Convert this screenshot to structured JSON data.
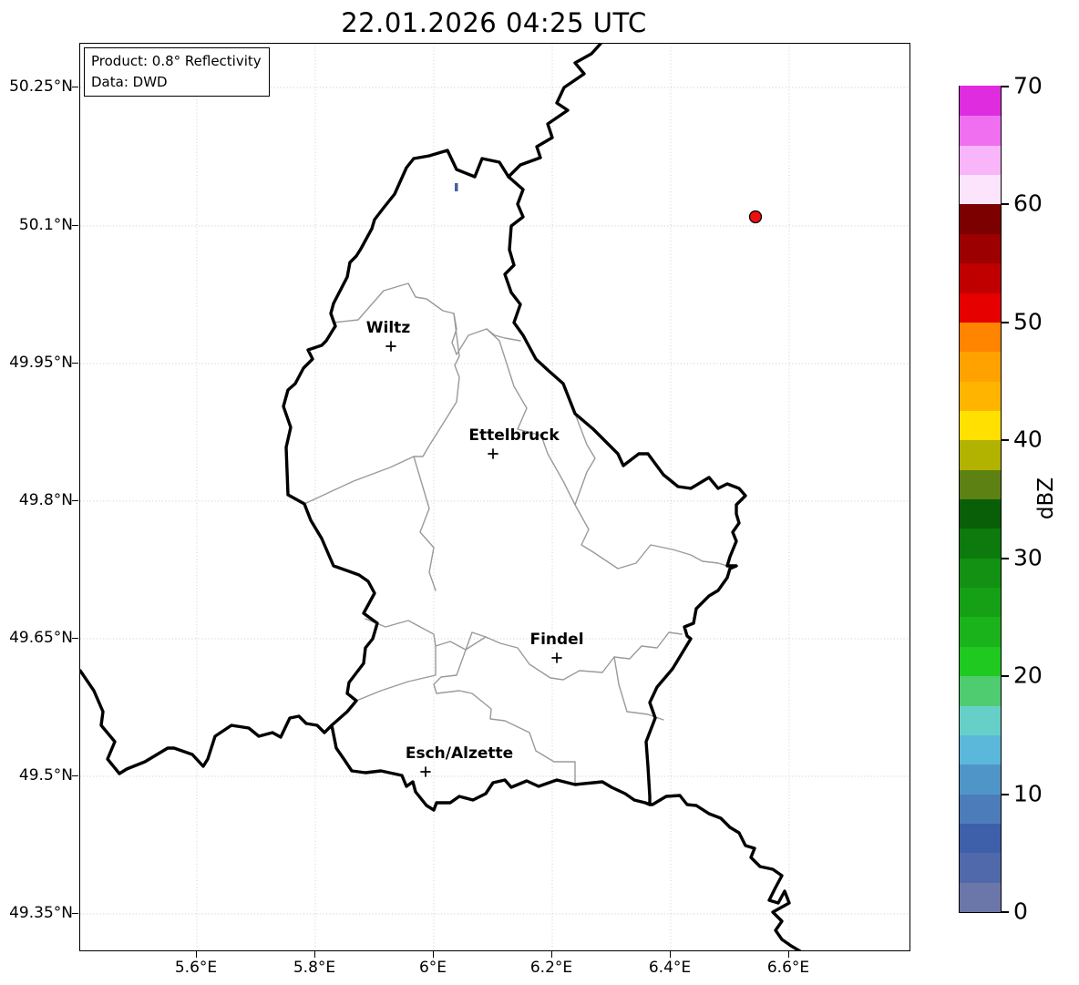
{
  "title": "22.01.2026 04:25 UTC",
  "info_box": {
    "line1": "Product: 0.8° Reflectivity",
    "line2": "Data: DWD"
  },
  "cities": [
    {
      "name": "Wiltz"
    },
    {
      "name": "Ettelbruck"
    },
    {
      "name": "Findel"
    },
    {
      "name": "Esch/Alzette"
    }
  ],
  "axes": {
    "x_ticks": [
      "5.6°E",
      "5.8°E",
      "6°E",
      "6.2°E",
      "6.4°E",
      "6.6°E"
    ],
    "y_ticks": [
      "50.25°N",
      "50.1°N",
      "49.95°N",
      "49.8°N",
      "49.65°N",
      "49.5°N",
      "49.35°N"
    ]
  },
  "colorbar": {
    "label": "dBZ",
    "ticks": [
      "70",
      "60",
      "50",
      "40",
      "30",
      "20",
      "10",
      "0"
    ],
    "min": 0,
    "max": 70,
    "step": 2.5,
    "colors_bottom_to_top": [
      "#6b77a8",
      "#4f69ab",
      "#3e5fa9",
      "#4c7cba",
      "#5095c8",
      "#5bb8da",
      "#66d0c8",
      "#4fcc70",
      "#1fc91f",
      "#1bb31b",
      "#16a016",
      "#129112",
      "#0c7a0c",
      "#085f08",
      "#5e8114",
      "#b2b200",
      "#ffe000",
      "#ffb400",
      "#ffa200",
      "#ff8400",
      "#e60000",
      "#c00000",
      "#9c0000",
      "#7c0000",
      "#fde4fd",
      "#f9b5f9",
      "#ef6ff0",
      "#df2cdf"
    ]
  },
  "radar_echoes": {
    "dot_color": "#ec1010",
    "pixel_color": "#46609f"
  }
}
